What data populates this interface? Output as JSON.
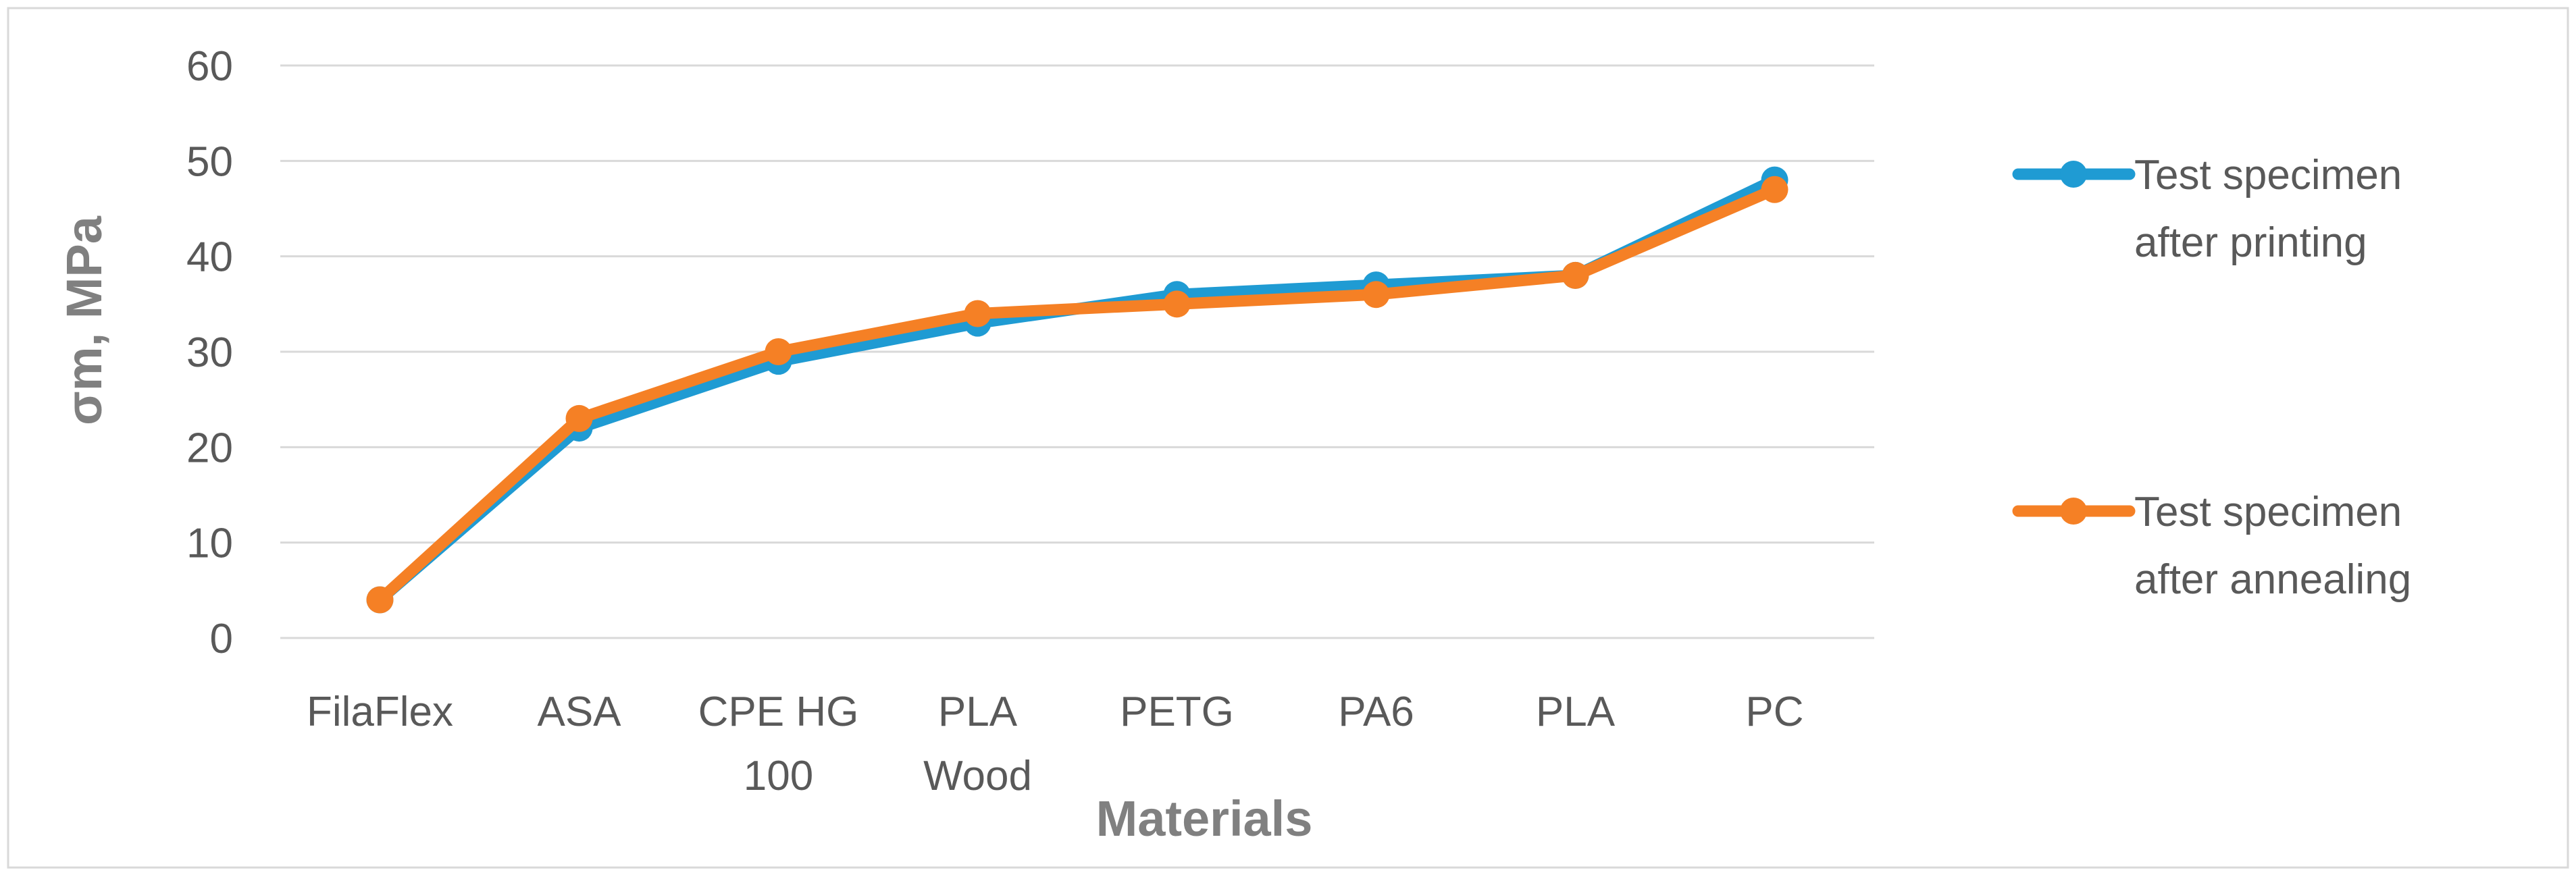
{
  "chart_data": {
    "type": "line",
    "title": "",
    "xlabel": "Materials",
    "ylabel": "σm, MPa",
    "categories": [
      [
        "FilaFlex"
      ],
      [
        "ASA"
      ],
      [
        "CPE HG",
        "100"
      ],
      [
        "PLA",
        "Wood"
      ],
      [
        "PETG"
      ],
      [
        "PA6"
      ],
      [
        "PLA"
      ],
      [
        "PC"
      ]
    ],
    "yticks": [
      "0",
      "10",
      "20",
      "30",
      "40",
      "50",
      "60"
    ],
    "ylim": [
      0,
      60
    ],
    "grid": true,
    "legend_position": "right",
    "series": [
      {
        "name": [
          "Test specimen",
          "after printing"
        ],
        "color": "#1F9BD3",
        "values": [
          4,
          22,
          29,
          33,
          36,
          37,
          38,
          48
        ]
      },
      {
        "name": [
          "Test specimen",
          "after annealing"
        ],
        "color": "#F58025",
        "values": [
          4,
          23,
          30,
          34,
          35,
          36,
          38,
          47
        ]
      }
    ]
  }
}
